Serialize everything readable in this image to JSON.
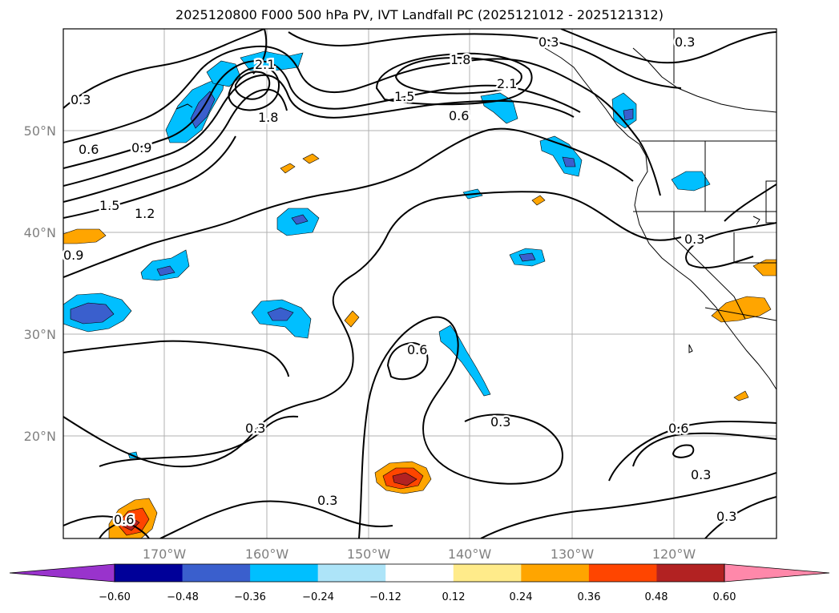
{
  "title": "2025120800 F000 500 hPa PV, IVT Landfall PC (2025121012 - 2025121312)",
  "lat_labels": [
    "50°N",
    "40°N",
    "30°N",
    "20°N"
  ],
  "lon_labels": [
    "170°W",
    "160°W",
    "150°W",
    "140°W",
    "130°W",
    "120°W"
  ],
  "contour_labels": [
    "0.3",
    "0.3",
    "2.1",
    "1.8",
    "1.5",
    "0.6",
    "0.9",
    "1.8",
    "0.6",
    "1.5",
    "1.2",
    "0.9",
    "0.3",
    "0.6",
    "0.3",
    "0.3",
    "0.6",
    "0.3",
    "0.6",
    "0.3",
    "0.3",
    "2.1",
    "0.3"
  ],
  "colorbar": {
    "tick_labels": [
      "−0.60",
      "−0.48",
      "−0.36",
      "−0.24",
      "−0.12",
      "0.12",
      "0.24",
      "0.36",
      "0.48",
      "0.60"
    ],
    "colors": [
      "#9933cc",
      "#000099",
      "#3a5fcd",
      "#00bfff",
      "#ade4f8",
      "#ffffff",
      "#ffeb8a",
      "#ffa500",
      "#ff4500",
      "#b22222",
      "#ff88aa"
    ]
  }
}
